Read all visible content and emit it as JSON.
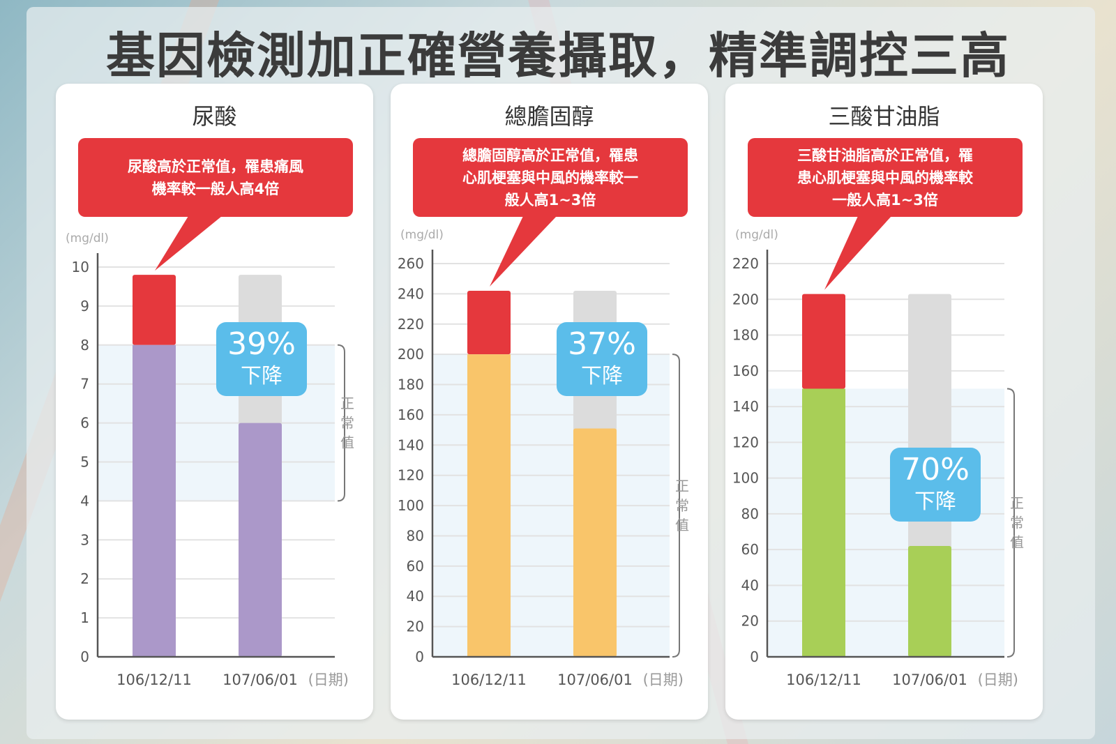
{
  "page_title": "基因檢測加正確營養攝取，精準調控三高",
  "colors": {
    "callout": "#e5383d",
    "excess": "#e5383d",
    "after_bg": "#dcdcdc",
    "badge": "#5bbdea",
    "normal_band": "#eef6fb"
  },
  "chart_data": [
    {
      "type": "bar",
      "title": "尿酸",
      "callout": "尿酸高於正常值，罹患痛風\n機率較一般人高4倍",
      "unit": "(mg/dl)",
      "xunit": "(日期)",
      "categories": [
        "106/12/11",
        "107/06/01"
      ],
      "values": [
        9.8,
        6.0
      ],
      "ylim": [
        0,
        10
      ],
      "yticks": [
        0,
        1,
        2,
        3,
        4,
        5,
        6,
        7,
        8,
        9,
        10
      ],
      "normal_range": [
        4,
        8
      ],
      "normal_label": "正常值",
      "bar_color": "#ab98c9",
      "badge_pct": "39%",
      "badge_text": "下降",
      "grid": true
    },
    {
      "type": "bar",
      "title": "總膽固醇",
      "callout": "總膽固醇高於正常值，罹患\n心肌梗塞與中風的機率較一\n般人高1~3倍",
      "unit": "(mg/dl)",
      "xunit": "(日期)",
      "categories": [
        "106/12/11",
        "107/06/01"
      ],
      "values": [
        242,
        151
      ],
      "ylim": [
        0,
        260
      ],
      "yticks": [
        0,
        20,
        40,
        60,
        80,
        100,
        120,
        140,
        160,
        180,
        200,
        220,
        240,
        260
      ],
      "normal_range": [
        0,
        200
      ],
      "normal_label": "正常值",
      "bar_color": "#f9c56a",
      "badge_pct": "37%",
      "badge_text": "下降",
      "grid": true
    },
    {
      "type": "bar",
      "title": "三酸甘油脂",
      "callout": "三酸甘油脂高於正常值，罹\n患心肌梗塞與中風的機率較\n一般人高1~3倍",
      "unit": "(mg/dl)",
      "xunit": "(日期)",
      "categories": [
        "106/12/11",
        "107/06/01"
      ],
      "values": [
        203,
        62
      ],
      "ylim": [
        0,
        220
      ],
      "yticks": [
        0,
        20,
        40,
        60,
        80,
        100,
        120,
        140,
        160,
        180,
        200,
        220
      ],
      "normal_range": [
        0,
        150
      ],
      "normal_label": "正常值",
      "bar_color": "#a8cf57",
      "badge_pct": "70%",
      "badge_text": "下降",
      "grid": true
    }
  ]
}
